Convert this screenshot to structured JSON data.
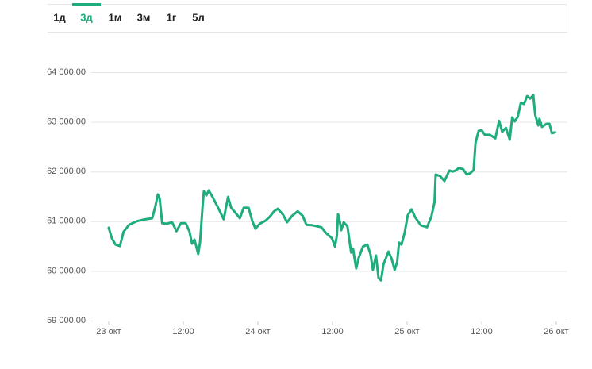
{
  "tabs": {
    "items": [
      "1д",
      "3д",
      "1м",
      "3м",
      "1г",
      "5л"
    ],
    "active": 1,
    "active_color": "#1fad7e"
  },
  "chart_data": {
    "type": "line",
    "series": [
      {
        "color": "#1fad7e",
        "x": [
          0,
          0.5,
          1.1,
          1.8,
          2.4,
          3.3,
          4.5,
          5.5,
          7.0,
          7.5,
          7.9,
          8.2,
          8.6,
          9.3,
          10.2,
          10.9,
          11.6,
          12.4,
          13.0,
          13.4,
          13.8,
          14.4,
          14.7,
          15.1,
          15.3,
          15.7,
          16.1,
          16.7,
          17.6,
          18.5,
          19.2,
          19.7,
          20.4,
          21.1,
          21.7,
          22.5,
          23.1,
          23.6,
          24.3,
          25.2,
          25.9,
          26.6,
          27.2,
          28.0,
          28.7,
          29.5,
          30.4,
          31.2,
          31.8,
          32.7,
          34.2,
          34.9,
          35.9,
          36.4,
          36.7,
          36.9,
          37.2,
          37.4,
          37.8,
          38.4,
          39.0,
          39.3,
          39.8,
          40.2,
          40.9,
          41.6,
          42.1,
          42.5,
          43.0,
          43.4,
          43.8,
          44.2,
          45.0,
          45.5,
          46.0,
          46.4,
          46.7,
          47.1,
          47.6,
          48.1,
          48.7,
          49.3,
          50.2,
          51.2,
          51.9,
          52.4,
          52.6,
          53.3,
          54.0,
          54.8,
          55.3,
          55.8,
          56.3,
          57.0,
          57.6,
          58.2,
          58.7,
          59.0,
          59.5,
          60.0,
          60.5,
          61.3,
          62.2,
          62.8,
          63.3,
          63.9,
          64.5,
          64.9,
          65.3,
          65.8,
          66.3,
          66.8,
          67.3,
          67.8,
          68.3,
          68.6,
          69.1,
          69.3,
          69.7,
          70.4,
          70.9,
          71.3,
          71.8
        ],
        "values": [
          60870,
          60660,
          60530,
          60500,
          60790,
          60930,
          61000,
          61030,
          61060,
          61300,
          61540,
          61460,
          60960,
          60950,
          60980,
          60800,
          60960,
          60960,
          60790,
          60550,
          60630,
          60340,
          60580,
          61300,
          61600,
          61520,
          61620,
          61490,
          61270,
          61040,
          61490,
          61270,
          61170,
          61060,
          61270,
          61270,
          61000,
          60850,
          60950,
          61010,
          61090,
          61200,
          61250,
          61140,
          60980,
          61110,
          61200,
          61110,
          60930,
          60920,
          60880,
          60770,
          60660,
          60490,
          60710,
          61140,
          60980,
          60820,
          60980,
          60900,
          60370,
          60450,
          60050,
          60260,
          60490,
          60530,
          60340,
          60020,
          60310,
          59860,
          59810,
          60130,
          60390,
          60250,
          60020,
          60180,
          60570,
          60530,
          60770,
          61120,
          61240,
          61080,
          60920,
          60880,
          61090,
          61380,
          61940,
          61910,
          61810,
          62020,
          62000,
          62020,
          62070,
          62050,
          61940,
          61970,
          62030,
          62580,
          62820,
          62830,
          62740,
          62740,
          62670,
          63020,
          62800,
          62880,
          62640,
          63090,
          63010,
          63100,
          63390,
          63360,
          63520,
          63470,
          63540,
          63140,
          62930,
          63060,
          62900,
          62960,
          62960,
          62770,
          62790
        ]
      }
    ],
    "xlim": [
      0,
      72
    ],
    "xticks": [
      {
        "value": 0,
        "label": "23 окт"
      },
      {
        "value": 12,
        "label": "12:00"
      },
      {
        "value": 24,
        "label": "24 окт"
      },
      {
        "value": 36,
        "label": "12:00"
      },
      {
        "value": 48,
        "label": "25 окт"
      },
      {
        "value": 60,
        "label": "12:00"
      },
      {
        "value": 72,
        "label": "26 окт"
      }
    ],
    "ylim": [
      59000,
      64000
    ],
    "yticks": [
      {
        "value": 59000,
        "label": "59 000.00"
      },
      {
        "value": 60000,
        "label": "60 000.00"
      },
      {
        "value": 61000,
        "label": "61 000.00"
      },
      {
        "value": 62000,
        "label": "62 000.00"
      },
      {
        "value": 63000,
        "label": "63 000.00"
      },
      {
        "value": 64000,
        "label": "64 000.00"
      }
    ],
    "grid": true
  }
}
